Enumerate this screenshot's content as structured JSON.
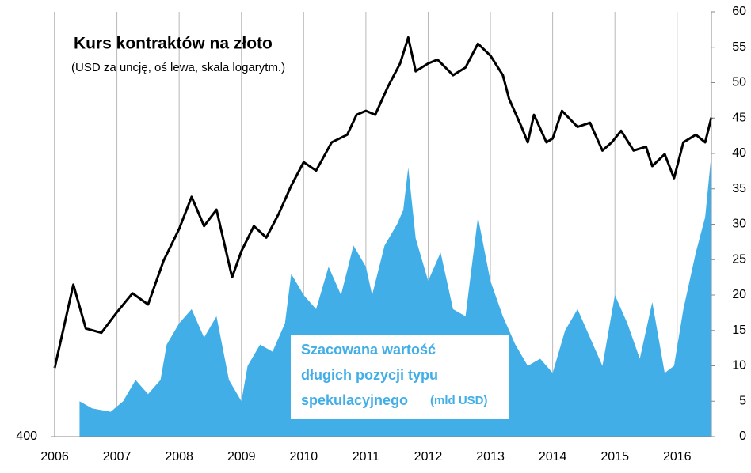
{
  "chart_data": {
    "type": "line-area",
    "title": "Kurs kontraktów na złoto",
    "subtitle": "(USD za uncję, oś lewa, skala logarytm.)",
    "annotation": [
      "Szacowana wartość",
      "długich pozycji typu",
      "spekulacyjnego"
    ],
    "annotation_unit": "(mld USD)",
    "xlim": [
      2006,
      2016.55
    ],
    "xticks": [
      2006,
      2007,
      2008,
      2009,
      2010,
      2011,
      2012,
      2013,
      2014,
      2015,
      2016
    ],
    "ylim": [
      400,
      2100
    ],
    "ylog": true,
    "yticks": [
      400
    ],
    "y2lim": [
      0,
      60
    ],
    "y2ticks": [
      0,
      5,
      10,
      15,
      20,
      25,
      30,
      35,
      40,
      45,
      50,
      55,
      60
    ],
    "grid": true,
    "series": [
      {
        "type": "area",
        "axis": "y2",
        "color": "#41aee8",
        "x": [
          2006.4,
          2006.6,
          2006.9,
          2007.1,
          2007.3,
          2007.5,
          2007.7,
          2007.8,
          2008.0,
          2008.2,
          2008.4,
          2008.6,
          2008.8,
          2009.0,
          2009.1,
          2009.3,
          2009.5,
          2009.7,
          2009.8,
          2010.0,
          2010.2,
          2010.4,
          2010.6,
          2010.8,
          2011.0,
          2011.1,
          2011.3,
          2011.5,
          2011.6,
          2011.68,
          2011.8,
          2012.0,
          2012.2,
          2012.4,
          2012.6,
          2012.8,
          2013.0,
          2013.2,
          2013.4,
          2013.6,
          2013.8,
          2014.0,
          2014.2,
          2014.4,
          2014.6,
          2014.8,
          2015.0,
          2015.2,
          2015.4,
          2015.6,
          2015.8,
          2015.95,
          2016.1,
          2016.3,
          2016.45,
          2016.55
        ],
        "values": [
          5,
          4,
          3.5,
          5,
          8,
          6,
          8,
          13,
          16,
          18,
          14,
          17,
          8,
          5,
          10,
          13,
          12,
          16,
          23,
          20,
          18,
          24,
          20,
          27,
          24,
          20,
          27,
          30,
          32,
          38,
          28,
          22,
          26,
          18,
          17,
          31,
          22,
          17,
          13,
          10,
          11,
          9,
          15,
          18,
          14,
          10,
          20,
          16,
          11,
          19,
          9,
          10,
          18,
          26,
          31,
          40
        ]
      },
      {
        "type": "line",
        "axis": "y",
        "color": "#000000",
        "x": [
          2006.0,
          2006.3,
          2006.5,
          2006.75,
          2007.0,
          2007.25,
          2007.5,
          2007.75,
          2008.0,
          2008.2,
          2008.4,
          2008.6,
          2008.85,
          2009.0,
          2009.2,
          2009.4,
          2009.6,
          2009.8,
          2010.0,
          2010.2,
          2010.45,
          2010.7,
          2010.85,
          2011.0,
          2011.15,
          2011.35,
          2011.55,
          2011.68,
          2011.8,
          2012.0,
          2012.15,
          2012.4,
          2012.6,
          2012.8,
          2013.0,
          2013.2,
          2013.3,
          2013.5,
          2013.6,
          2013.7,
          2013.9,
          2014.0,
          2014.15,
          2014.4,
          2014.6,
          2014.8,
          2014.95,
          2015.1,
          2015.3,
          2015.5,
          2015.6,
          2015.8,
          2015.95,
          2016.1,
          2016.3,
          2016.45,
          2016.55
        ],
        "values": [
          523,
          724,
          610,
          600,
          650,
          700,
          670,
          795,
          900,
          1020,
          910,
          970,
          745,
          825,
          910,
          870,
          955,
          1065,
          1168,
          1130,
          1262,
          1300,
          1405,
          1427,
          1405,
          1565,
          1717,
          1900,
          1665,
          1717,
          1743,
          1640,
          1690,
          1855,
          1770,
          1640,
          1495,
          1340,
          1262,
          1405,
          1262,
          1281,
          1427,
          1340,
          1362,
          1222,
          1262,
          1320,
          1222,
          1240,
          1150,
          1205,
          1097,
          1262,
          1300,
          1262,
          1390
        ]
      }
    ]
  }
}
